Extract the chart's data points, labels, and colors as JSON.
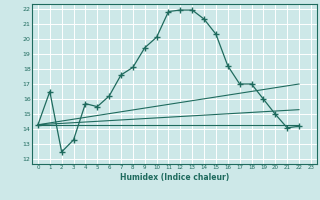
{
  "xlabel": "Humidex (Indice chaleur)",
  "xlim": [
    -0.5,
    23.5
  ],
  "ylim": [
    11.7,
    22.3
  ],
  "yticks": [
    12,
    13,
    14,
    15,
    16,
    17,
    18,
    19,
    20,
    21,
    22
  ],
  "xticks": [
    0,
    1,
    2,
    3,
    4,
    5,
    6,
    7,
    8,
    9,
    10,
    11,
    12,
    13,
    14,
    15,
    16,
    17,
    18,
    19,
    20,
    21,
    22,
    23
  ],
  "bg_color": "#cde8e8",
  "line_color": "#1f6b5e",
  "grid_color": "#ffffff",
  "main_x": [
    0,
    1,
    2,
    3,
    4,
    5,
    6,
    7,
    8,
    9,
    10,
    11,
    12,
    13,
    14,
    15,
    16,
    17,
    18,
    19,
    20,
    21,
    22
  ],
  "main_y": [
    14.3,
    16.5,
    12.5,
    13.3,
    15.7,
    15.5,
    16.2,
    17.6,
    18.1,
    19.4,
    20.1,
    21.8,
    21.9,
    21.9,
    21.3,
    20.3,
    18.2,
    17.0,
    17.0,
    16.0,
    15.0,
    14.1,
    14.2
  ],
  "straight_lines": [
    {
      "x": [
        0,
        22
      ],
      "y": [
        14.3,
        17.0
      ]
    },
    {
      "x": [
        0,
        22
      ],
      "y": [
        14.3,
        15.3
      ]
    },
    {
      "x": [
        0,
        22
      ],
      "y": [
        14.3,
        14.3
      ]
    }
  ]
}
